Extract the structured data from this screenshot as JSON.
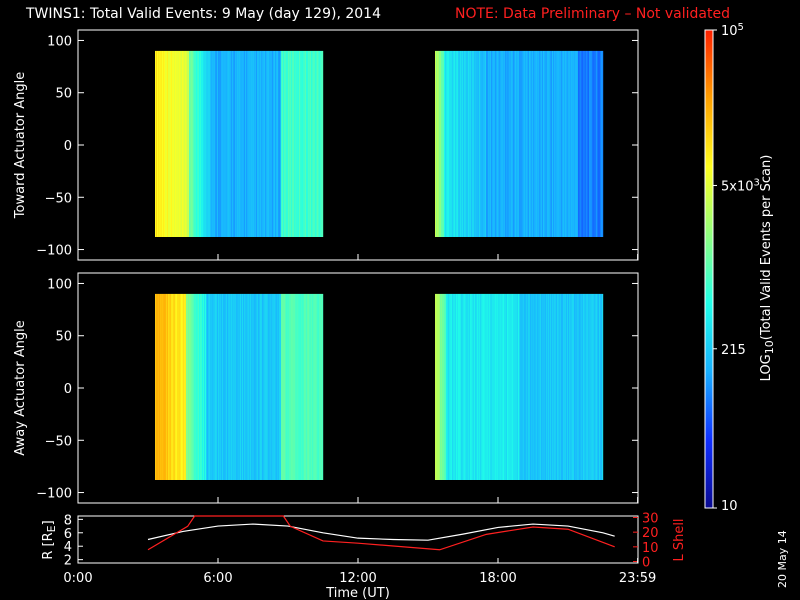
{
  "header": {
    "title": "TWINS1: Total Valid Events:  9 May (day 129), 2014",
    "note": "NOTE: Data Preliminary – Not validated",
    "note_color": "#ff2020"
  },
  "chart_data": [
    {
      "type": "heatmap",
      "panel": "toward",
      "ylabel": "Toward Actuator Angle",
      "ylim": [
        -110,
        110
      ],
      "yticks": [
        "100",
        "50",
        "0",
        "−50",
        "−100"
      ],
      "ytick_values": [
        100,
        50,
        0,
        -50,
        -100
      ],
      "xlim": [
        0,
        24
      ],
      "data_blocks": [
        {
          "t_start": 3.3,
          "t_end": 10.5,
          "angle_min": -88,
          "angle_max": 90
        },
        {
          "t_start": 15.3,
          "t_end": 22.5,
          "angle_min": -88,
          "angle_max": 90
        }
      ]
    },
    {
      "type": "heatmap",
      "panel": "away",
      "ylabel": "Away Actuator Angle",
      "ylim": [
        -110,
        110
      ],
      "yticks": [
        "100",
        "50",
        "0",
        "−50",
        "−100"
      ],
      "ytick_values": [
        100,
        50,
        0,
        -50,
        -100
      ],
      "xlim": [
        0,
        24
      ],
      "data_blocks": [
        {
          "t_start": 3.3,
          "t_end": 10.5,
          "angle_min": -88,
          "angle_max": 90
        },
        {
          "t_start": 15.3,
          "t_end": 22.5,
          "angle_min": -88,
          "angle_max": 90
        }
      ]
    },
    {
      "type": "line",
      "panel": "orbit",
      "xlabel": "Time (UT)",
      "xticks": [
        "0:00",
        "6:00",
        "12:00",
        "18:00",
        "23:59"
      ],
      "xtick_values": [
        0,
        6,
        12,
        18,
        23.983
      ],
      "ylabel_left": "R [R",
      "ylabel_left_sub": "E",
      "ylabel_left_end": "]",
      "yticks_left": [
        "8",
        "6",
        "4",
        "2"
      ],
      "ytick_left_values": [
        8,
        6,
        4,
        2
      ],
      "ylim_left": [
        1.5,
        8.5
      ],
      "ylabel_right": "L Shell",
      "yticks_right": [
        "30",
        "20",
        "10",
        "0"
      ],
      "ytick_right_values": [
        30,
        20,
        10,
        0
      ],
      "ylim_right": [
        -1,
        31
      ],
      "series": [
        {
          "name": "R",
          "axis": "left",
          "color": "#ffffff",
          "x": [
            3.0,
            4.5,
            6.0,
            7.5,
            9.0,
            10.5,
            12.0,
            13.5,
            15.0,
            16.5,
            18.0,
            19.5,
            21.0,
            22.5,
            23.0
          ],
          "y": [
            5.0,
            6.2,
            7.0,
            7.3,
            7.0,
            6.0,
            5.2,
            5.0,
            4.9,
            5.8,
            6.8,
            7.3,
            7.0,
            6.0,
            5.5
          ]
        },
        {
          "name": "L Shell",
          "axis": "right",
          "color": "#ff2020",
          "x": [
            3.0,
            4.7,
            5.0,
            8.8,
            9.1,
            10.5,
            12.0,
            15.5,
            17.5,
            19.5,
            21.0,
            23.0
          ],
          "y": [
            8.0,
            24.0,
            31.0,
            31.0,
            24.0,
            14.0,
            12.5,
            8.0,
            18.5,
            23.5,
            22.0,
            10.0
          ]
        }
      ]
    }
  ],
  "colorbar": {
    "ticks": [
      "10",
      "215",
      "5x10",
      "10"
    ],
    "tick_values": [
      1,
      2.3324,
      3.699,
      5
    ],
    "tick_superscripts": [
      "",
      "",
      "3",
      "5"
    ],
    "label_log": "LOG",
    "label_sub": "10",
    "label_rest": "(Total Valid Events per Scan)",
    "colors": [
      "#0a0a90",
      "#1030ff",
      "#18b0ff",
      "#20ffe8",
      "#90ff80",
      "#ffff20",
      "#ffa000",
      "#ff2000"
    ]
  },
  "footer": {
    "date_stamp": "20 May 14"
  }
}
